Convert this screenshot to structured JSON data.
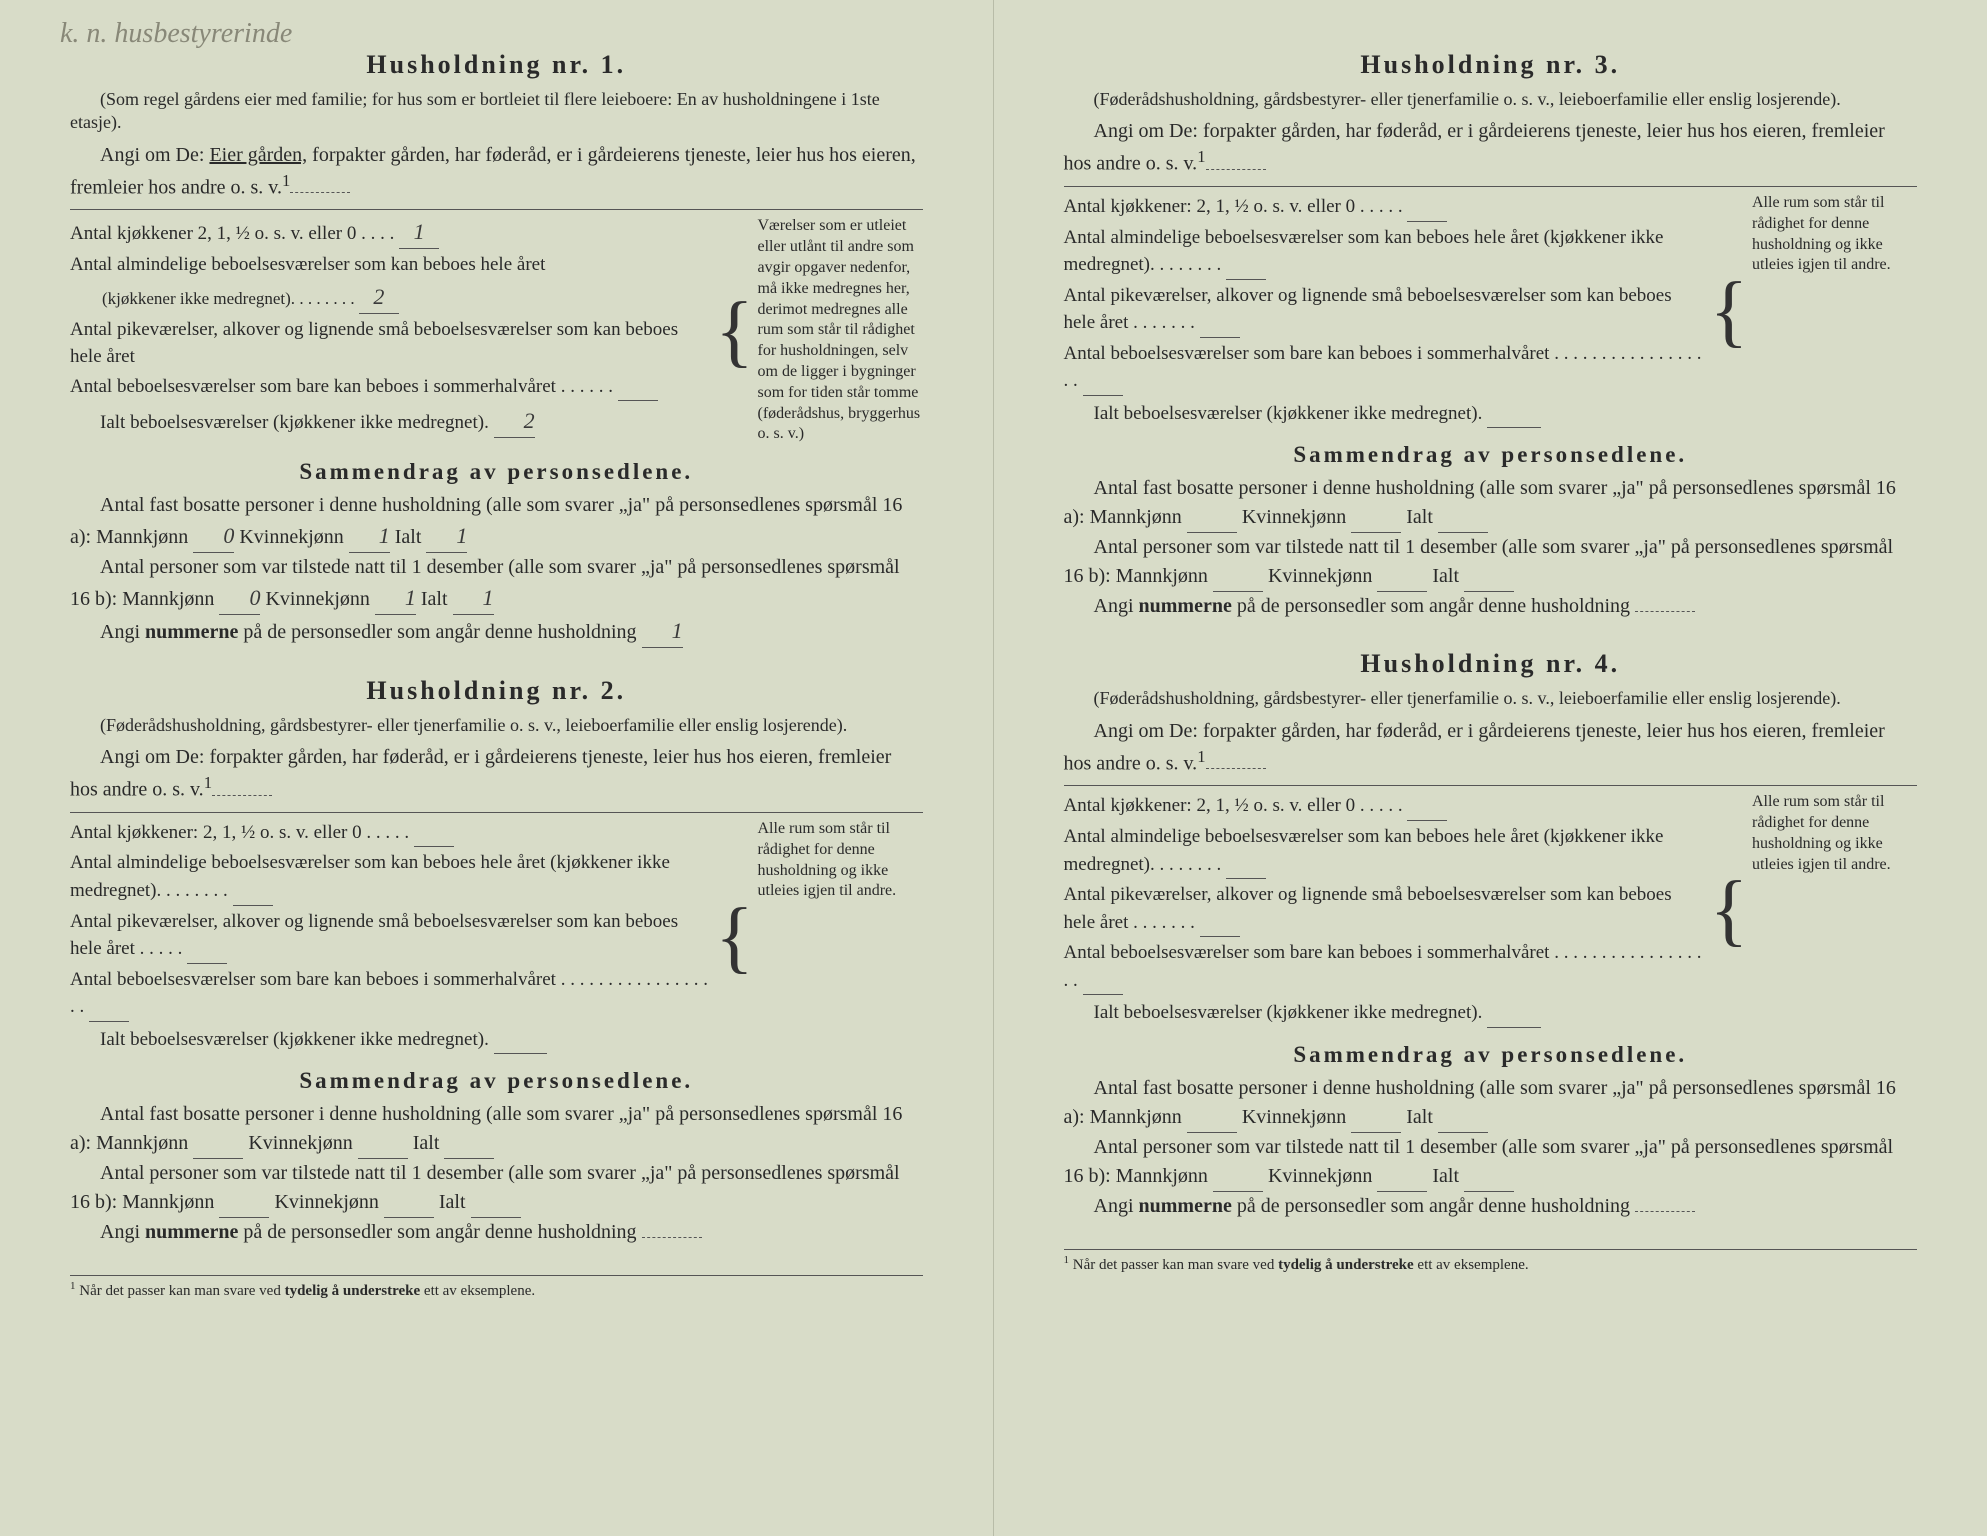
{
  "page_bg": "#d8dcc8",
  "text_color": "#2a2a2a",
  "handwriting_note": "k. n. husbestyrerinde",
  "households": [
    {
      "title": "Husholdning nr. 1.",
      "intro": "(Som regel gårdens eier med familie; for hus som er bortleiet til flere leieboere: En av husholdningene i 1ste etasje).",
      "angi_prefix": "Angi om De:",
      "angi_options": "Eier gården, forpakter gården, har føderåd, er i gårdeierens tjeneste, leier hus hos eieren, fremleier hos andre o. s. v.",
      "angi_underlined": "Eier gården,",
      "kitchens": "Antal kjøkkener 2, 1, ½ o. s. v. eller 0",
      "kitchens_val": "1",
      "rooms_year": "Antal almindelige beboelsesværelser som kan beboes hele året",
      "rooms_year_sub": "(kjøkkener ikke medregnet).",
      "rooms_year_val": "2",
      "maid_rooms": "Antal pikeværelser, alkover og lignende små beboelsesværelser som kan beboes hele året",
      "maid_rooms_val": "",
      "summer_rooms": "Antal beboelsesværelser som bare kan beboes i sommerhalvåret",
      "summer_rooms_val": "",
      "total_rooms": "Ialt beboelsesværelser (kjøkkener ikke medregnet).",
      "total_rooms_val": "2",
      "side_note": "Værelser som er utleiet eller utlånt til andre som avgir opgaver nedenfor, må ikke medregnes her, derimot medregnes alle rum som står til rådighet for husholdningen, selv om de ligger i bygninger som for tiden står tomme (føderådshus, bryggerhus o. s. v.)",
      "summary_title": "Sammendrag av personsedlene.",
      "resident_line": "Antal fast bosatte personer i denne husholdning (alle som svarer „ja\" på personsedlenes spørsmål 16 a): Mannkjønn",
      "resident_m": "0",
      "resident_k_label": "Kvinnekjønn",
      "resident_k": "1",
      "resident_total_label": "Ialt",
      "resident_total": "1",
      "present_line": "Antal personer som var tilstede natt til 1 desember (alle som svarer „ja\" på personsedlenes spørsmål 16 b): Mannkjønn",
      "present_m": "0",
      "present_k": "1",
      "present_total": "1",
      "numbers_line": "Angi nummerne på de personsedler som angår denne husholdning",
      "numbers_val": "1"
    },
    {
      "title": "Husholdning nr. 2.",
      "intro": "(Føderådshusholdning, gårdsbestyrer- eller tjenerfamilie o. s. v., leieboerfamilie eller enslig losjerende).",
      "angi_prefix": "Angi om De:",
      "angi_options": "forpakter gården, har føderåd, er i gårdeierens tjeneste, leier hus hos eieren, fremleier hos andre o. s. v.",
      "kitchens": "Antal kjøkkener: 2, 1, ½ o. s. v. eller 0",
      "rooms_year": "Antal almindelige beboelsesværelser som kan beboes hele året (kjøkkener ikke medregnet).",
      "maid_rooms": "Antal pikeværelser, alkover og lignende små beboelsesværelser som kan beboes hele året",
      "summer_rooms": "Antal beboelsesværelser som bare kan beboes i sommerhalvåret",
      "total_rooms": "Ialt beboelsesværelser (kjøkkener ikke medregnet).",
      "side_note": "Alle rum som står til rådighet for denne husholdning og ikke utleies igjen til andre.",
      "summary_title": "Sammendrag av personsedlene.",
      "resident_line": "Antal fast bosatte personer i denne husholdning (alle som svarer „ja\" på personsedlenes spørsmål 16 a): Mannkjønn",
      "resident_k_label": "Kvinnekjønn",
      "resident_total_label": "Ialt",
      "present_line": "Antal personer som var tilstede natt til 1 desember (alle som svarer „ja\" på personsedlenes spørsmål 16 b): Mannkjønn",
      "numbers_line": "Angi nummerne på de personsedler som angår denne husholdning"
    },
    {
      "title": "Husholdning nr. 3.",
      "intro": "(Føderådshusholdning, gårdsbestyrer- eller tjenerfamilie o. s. v., leieboerfamilie eller enslig losjerende).",
      "angi_prefix": "Angi om De:",
      "angi_options": "forpakter gården, har føderåd, er i gårdeierens tjeneste, leier hus hos eieren, fremleier hos andre o. s. v.",
      "kitchens": "Antal kjøkkener: 2, 1, ½ o. s. v. eller 0",
      "rooms_year": "Antal almindelige beboelsesværelser som kan beboes hele året (kjøkkener ikke medregnet).",
      "maid_rooms": "Antal pikeværelser, alkover og lignende små beboelsesværelser som kan beboes hele året",
      "summer_rooms": "Antal beboelsesværelser som bare kan beboes i sommerhalvåret",
      "total_rooms": "Ialt beboelsesværelser (kjøkkener ikke medregnet).",
      "side_note": "Alle rum som står til rådighet for denne husholdning og ikke utleies igjen til andre.",
      "summary_title": "Sammendrag av personsedlene.",
      "resident_line": "Antal fast bosatte personer i denne husholdning (alle som svarer „ja\" på personsedlenes spørsmål 16 a): Mannkjønn",
      "resident_k_label": "Kvinnekjønn",
      "resident_total_label": "Ialt",
      "present_line": "Antal personer som var tilstede natt til 1 desember (alle som svarer „ja\" på personsedlenes spørsmål 16 b): Mannkjønn",
      "numbers_line": "Angi nummerne på de personsedler som angår denne husholdning"
    },
    {
      "title": "Husholdning nr. 4.",
      "intro": "(Føderådshusholdning, gårdsbestyrer- eller tjenerfamilie o. s. v., leieboerfamilie eller enslig losjerende).",
      "angi_prefix": "Angi om De:",
      "angi_options": "forpakter gården, har føderåd, er i gårdeierens tjeneste, leier hus hos eieren, fremleier hos andre o. s. v.",
      "kitchens": "Antal kjøkkener: 2, 1, ½ o. s. v. eller 0",
      "rooms_year": "Antal almindelige beboelsesværelser som kan beboes hele året (kjøkkener ikke medregnet).",
      "maid_rooms": "Antal pikeværelser, alkover og lignende små beboelsesværelser som kan beboes hele året",
      "summer_rooms": "Antal beboelsesværelser som bare kan beboes i sommerhalvåret",
      "total_rooms": "Ialt beboelsesværelser (kjøkkener ikke medregnet).",
      "side_note": "Alle rum som står til rådighet for denne husholdning og ikke utleies igjen til andre.",
      "summary_title": "Sammendrag av personsedlene.",
      "resident_line": "Antal fast bosatte personer i denne husholdning (alle som svarer „ja\" på personsedlenes spørsmål 16 a): Mannkjønn",
      "resident_k_label": "Kvinnekjønn",
      "resident_total_label": "Ialt",
      "present_line": "Antal personer som var tilstede natt til 1 desember (alle som svarer „ja\" på personsedlenes spørsmål 16 b): Mannkjønn",
      "numbers_line": "Angi nummerne på de personsedler som angår denne husholdning"
    }
  ],
  "footnote": "¹ Når det passer kan man svare ved tydelig å understreke ett av eksemplene.",
  "footnote_bold": "tydelig å understreke",
  "sup1": "1"
}
